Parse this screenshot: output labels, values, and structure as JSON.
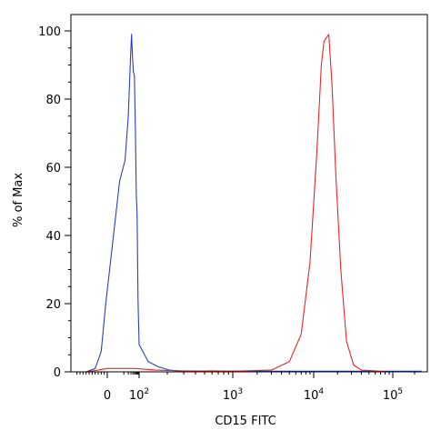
{
  "chart_data": {
    "type": "line",
    "title": "",
    "xlabel": "CD15 FITC",
    "ylabel": "% of Max",
    "x_scale": "biexponential (logicle)",
    "x_ticks": [
      {
        "value": 0,
        "base": "0",
        "exp": ""
      },
      {
        "value": 100,
        "base": "10",
        "exp": "2"
      },
      {
        "value": 1000,
        "base": "10",
        "exp": "3"
      },
      {
        "value": 10000,
        "base": "10",
        "exp": "4"
      },
      {
        "value": 100000,
        "base": "10",
        "exp": "5"
      }
    ],
    "y_ticks": [
      0,
      20,
      40,
      60,
      80,
      100
    ],
    "ylim": [
      0,
      105
    ],
    "grid": false,
    "legend": "none",
    "series": [
      {
        "color": "#2a3fbf",
        "x": [
          -70,
          -40,
          -20,
          -5,
          5,
          12,
          20,
          28,
          33,
          38,
          43,
          50,
          58,
          66,
          75,
          85,
          100,
          125,
          160,
          210,
          260,
          350,
          600,
          1000,
          3000,
          20000,
          100000,
          250000
        ],
        "y": [
          0,
          1,
          6,
          20,
          56,
          62,
          75,
          92,
          99,
          92,
          88,
          87,
          71,
          52,
          46,
          21,
          8,
          3,
          1.5,
          0.5,
          0.3,
          0.2,
          0.3,
          0.2,
          0.2,
          0.2,
          0.2,
          0.2
        ]
      },
      {
        "color": "#e8262a",
        "x": [
          -70,
          -30,
          0,
          60,
          150,
          300,
          1000,
          3000,
          5000,
          7000,
          9000,
          11000,
          12500,
          13500,
          14500,
          15500,
          17000,
          19000,
          22000,
          26000,
          32000,
          40000,
          60000,
          80000
        ],
        "y": [
          0,
          0.5,
          1,
          1,
          0.5,
          0.3,
          0.2,
          0.5,
          3,
          11,
          32,
          65,
          90,
          97,
          98,
          99,
          85,
          58,
          30,
          9,
          2,
          0.5,
          0.3,
          0
        ]
      }
    ]
  }
}
